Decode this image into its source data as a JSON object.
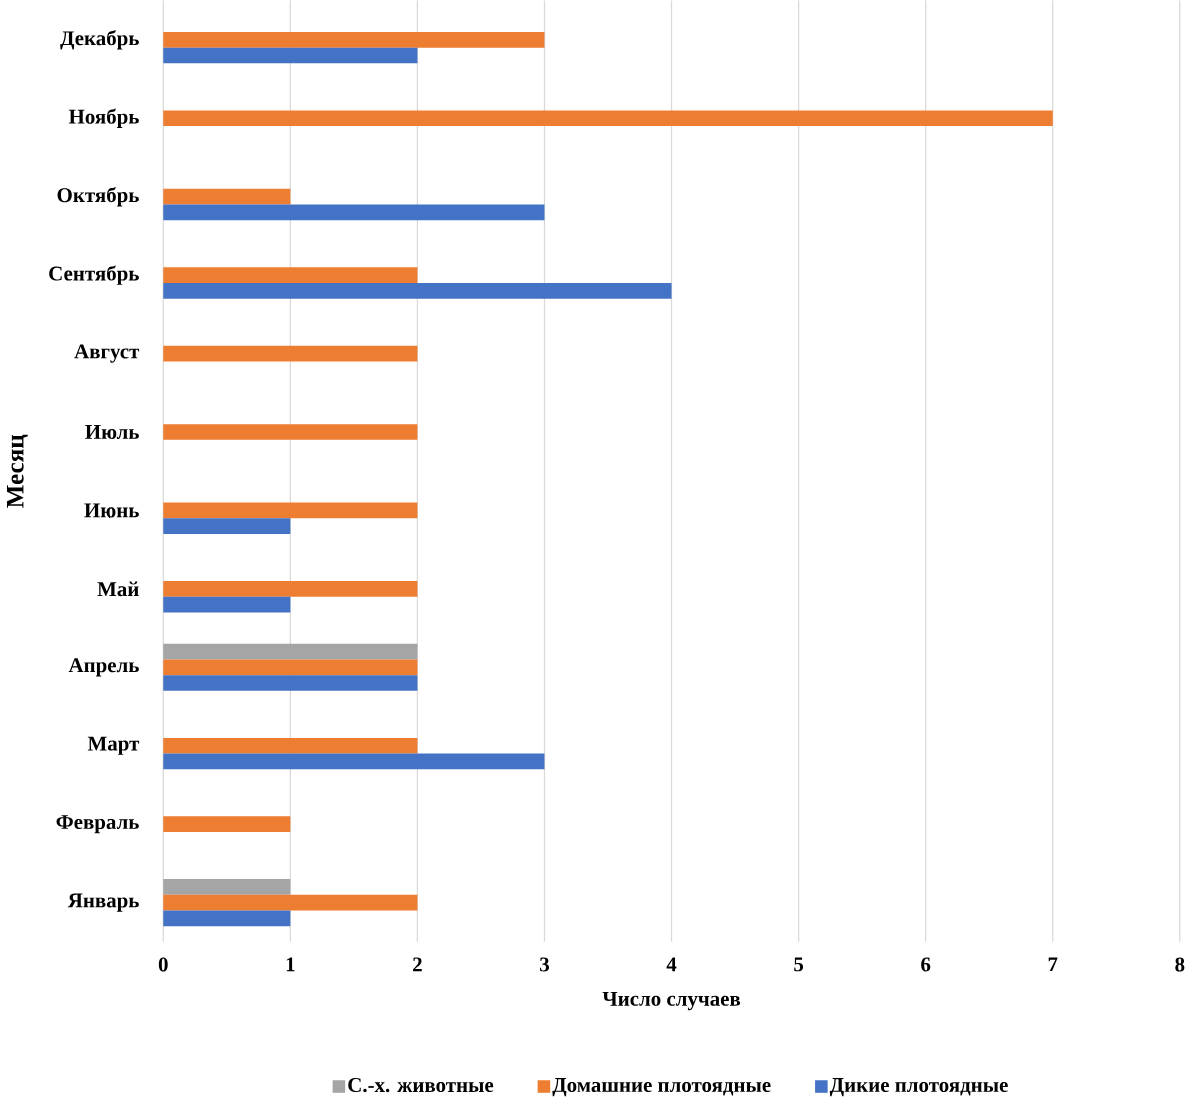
{
  "chart_data": {
    "type": "bar",
    "orientation": "horizontal",
    "xlabel": "Число случаев",
    "ylabel": "Месяц",
    "categories": [
      "Декабрь",
      "Ноябрь",
      "Октябрь",
      "Сентябрь",
      "Август",
      "Июль",
      "Июнь",
      "Май",
      "Апрель",
      "Март",
      "Февраль",
      "Январь"
    ],
    "series": [
      {
        "name": "С.-х. животные",
        "color": "#a5a5a5",
        "values": [
          null,
          null,
          null,
          null,
          null,
          null,
          null,
          null,
          2,
          null,
          null,
          1
        ]
      },
      {
        "name": "Домашние плотоядные",
        "color": "#ed7d31",
        "values": [
          3,
          7,
          1,
          2,
          2,
          2,
          2,
          2,
          2,
          2,
          1,
          2
        ]
      },
      {
        "name": "Дикие плотоядные",
        "color": "#4472c4",
        "values": [
          2,
          null,
          3,
          4,
          null,
          null,
          1,
          1,
          2,
          3,
          null,
          1
        ]
      }
    ],
    "xlim": [
      0,
      8
    ],
    "xticks": [
      0,
      1,
      2,
      3,
      4,
      5,
      6,
      7,
      8
    ],
    "grid": "x",
    "legend": "bottom"
  }
}
